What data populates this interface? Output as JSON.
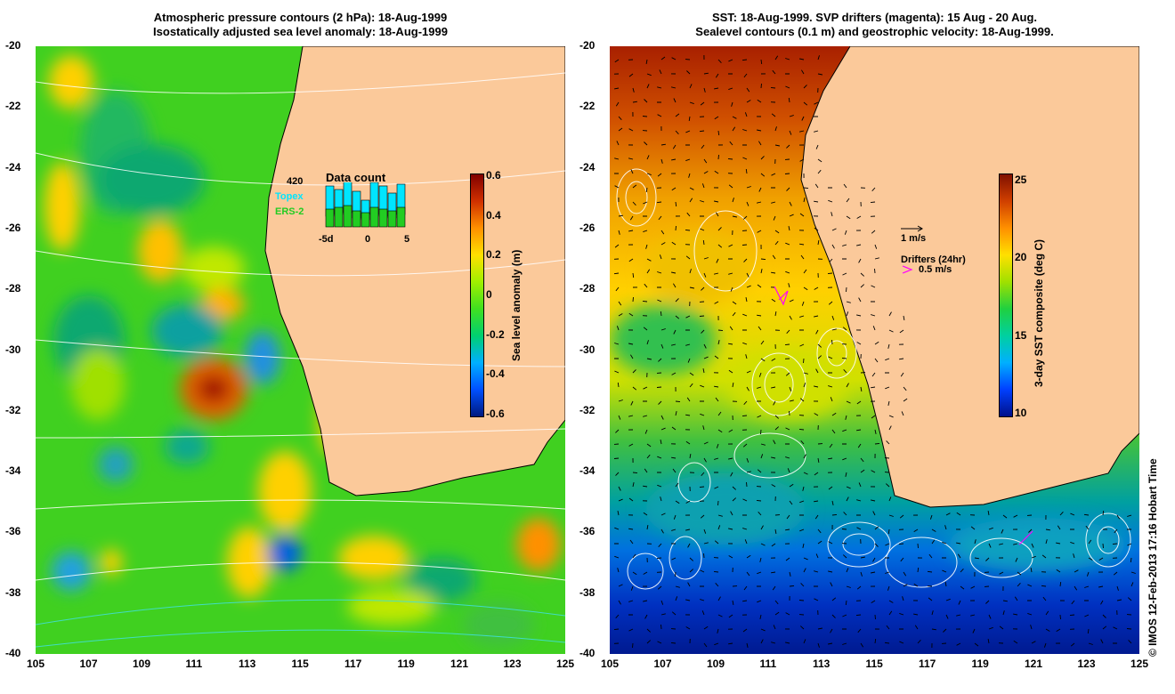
{
  "left_panel": {
    "title_line1": "Atmospheric pressure contours (2 hPa): 18-Aug-1999",
    "title_line2": "Isostatically adjusted sea level anomaly: 18-Aug-1999",
    "colorbar": {
      "label": "Sea level anomaly (m)",
      "ticks": [
        "0.6",
        "0.4",
        "0.2",
        "0",
        "-0.2",
        "-0.4",
        "-0.6"
      ],
      "colors": [
        "#001a80",
        "#0050ff",
        "#00b0ff",
        "#00d070",
        "#40e020",
        "#a0f000",
        "#ffe000",
        "#ff9000",
        "#d03000",
        "#800000"
      ]
    },
    "data_count_inset": {
      "title": "Data count",
      "max_value": "420",
      "series_topex": "Topex",
      "series_ers2": "ERS-2",
      "x_ticks": [
        "-5d",
        "0",
        "5"
      ],
      "topex_color": "#00e5ff",
      "ers2_color": "#22cc22"
    }
  },
  "right_panel": {
    "title_line1": "SST: 18-Aug-1999. SVP drifters (magenta): 15 Aug - 20 Aug.",
    "title_line2": "Sealevel contours (0.1 m) and geostrophic velocity: 18-Aug-1999.",
    "colorbar": {
      "label": "3-day SST composite (deg C)",
      "ticks": [
        "25",
        "20",
        "15",
        "10"
      ],
      "colors": [
        "#00108a",
        "#0040ff",
        "#00b0ff",
        "#00d0a0",
        "#20d040",
        "#a0e000",
        "#ffe000",
        "#ff9000",
        "#d04000",
        "#801000"
      ]
    },
    "velocity_legend": "1 m/s",
    "drifter_legend_title": "Drifters (24hr)",
    "drifter_legend_value": "0.5 m/s",
    "drifter_color": "#ff00ff"
  },
  "axes": {
    "y_ticks": [
      "-20",
      "-22",
      "-24",
      "-26",
      "-28",
      "-30",
      "-32",
      "-34",
      "-36",
      "-38",
      "-40"
    ],
    "x_ticks": [
      "105",
      "107",
      "109",
      "111",
      "113",
      "115",
      "117",
      "119",
      "121",
      "123",
      "125"
    ]
  },
  "land_color": "#fbc99a",
  "credit": "© IMOS 12-Feb-2013 17:16 Hobart Time"
}
